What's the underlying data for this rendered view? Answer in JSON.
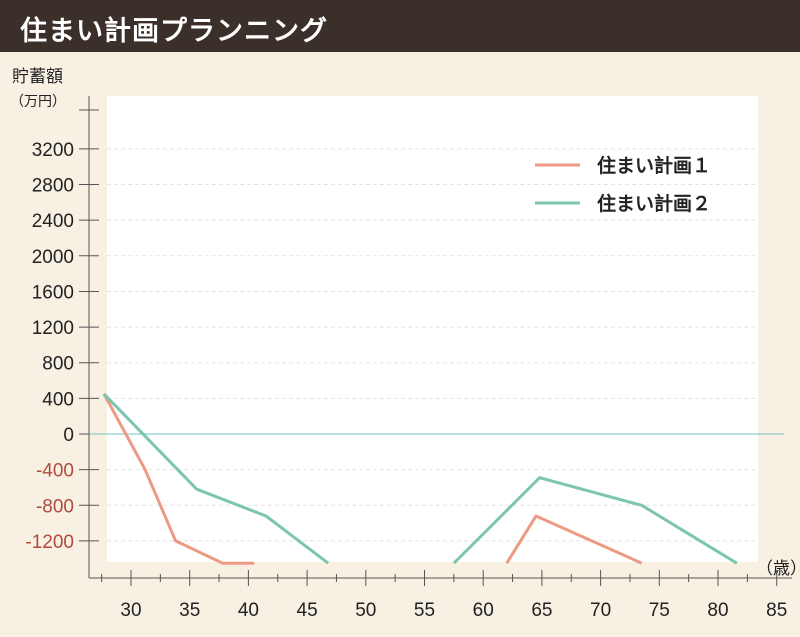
{
  "header": {
    "title": "住まい計画プランニング"
  },
  "chart_data": {
    "type": "line",
    "ylabel": "貯蓄額",
    "yunit": "（万円）",
    "xunit": "（歳）",
    "xlim": [
      27.5,
      86
    ],
    "ylim": [
      -1450,
      3800
    ],
    "x_ticks": [
      30,
      35,
      40,
      45,
      50,
      55,
      60,
      65,
      70,
      75,
      80,
      85
    ],
    "y_ticks": [
      3200,
      2800,
      2400,
      2000,
      1600,
      1200,
      800,
      400,
      0,
      -400,
      -800,
      -1200
    ],
    "negative_tick_color": "#b34a3a",
    "positive_tick_color": "#222222",
    "zero_line_color": "#6ec3bd",
    "grid": true,
    "legend_position": "top-right",
    "series": [
      {
        "name": "住まい計画１",
        "color": "#ee9a83",
        "segments": [
          [
            [
              27.7,
              450
            ],
            [
              31.2,
              -400
            ],
            [
              33.8,
              -1200
            ],
            [
              37.8,
              -1450
            ],
            [
              40.5,
              -1450
            ]
          ],
          [
            [
              62.0,
              -1450
            ],
            [
              64.5,
              -920
            ],
            [
              73.5,
              -1450
            ]
          ]
        ]
      },
      {
        "name": "住まい計画２",
        "color": "#7cc6ad",
        "segments": [
          [
            [
              27.7,
              450
            ],
            [
              35.6,
              -620
            ],
            [
              41.5,
              -920
            ],
            [
              46.8,
              -1450
            ]
          ],
          [
            [
              57.5,
              -1450
            ],
            [
              64.8,
              -490
            ],
            [
              73.5,
              -800
            ],
            [
              81.6,
              -1450
            ]
          ]
        ]
      }
    ]
  }
}
